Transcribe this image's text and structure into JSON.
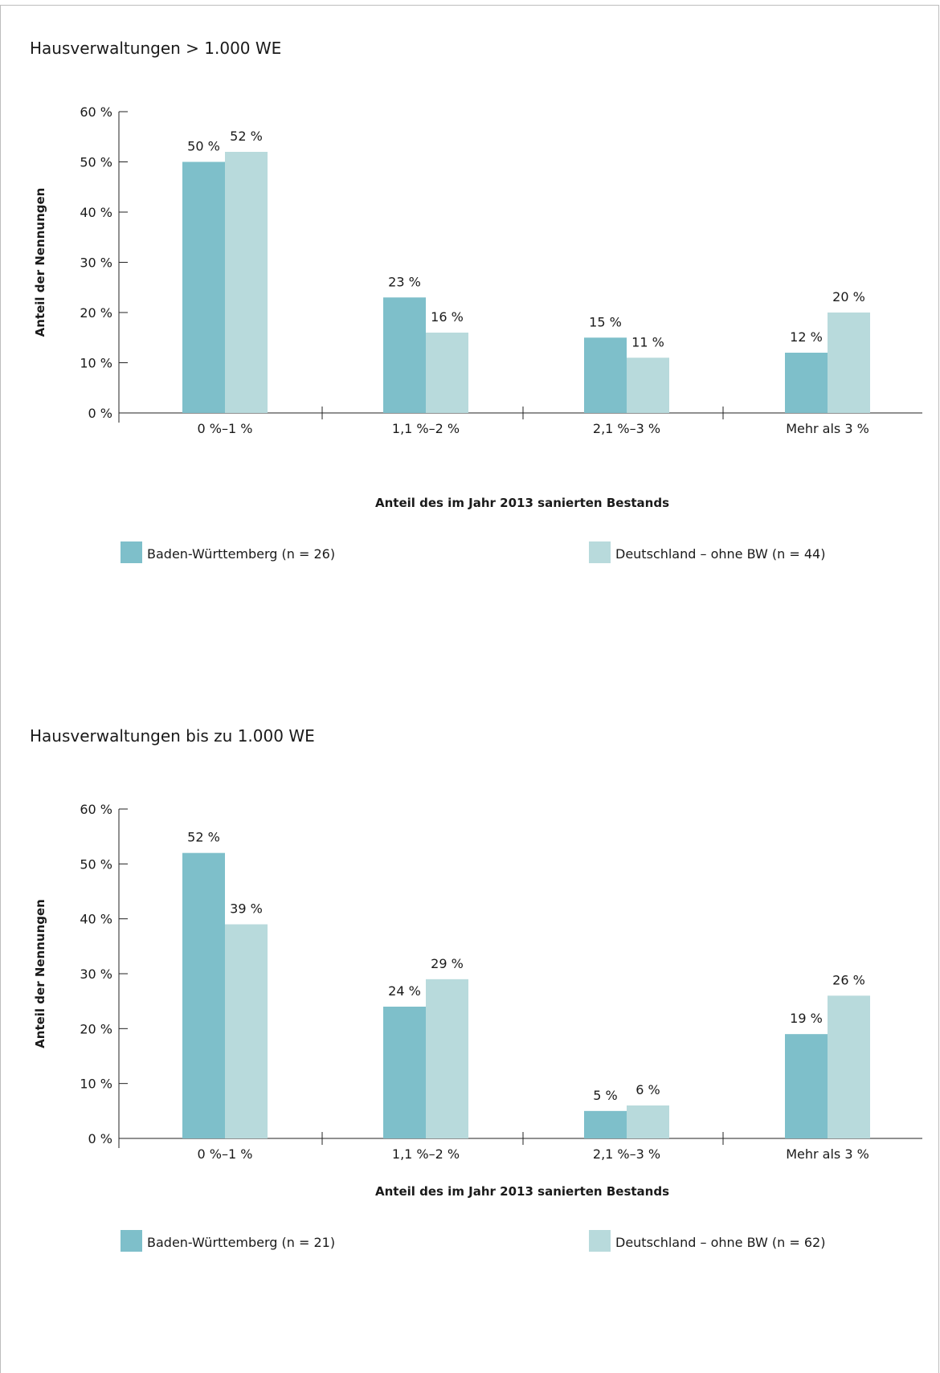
{
  "colors": {
    "bw": "#7ebfca",
    "de": "#b8dadc",
    "axis": "#222222"
  },
  "chart_data": [
    {
      "type": "bar",
      "title": "Hausverwaltungen > 1.000 WE",
      "xlabel": "Anteil des im Jahr 2013 sanierten Bestands",
      "ylabel": "Anteil der Nennungen",
      "ylim": [
        0,
        60
      ],
      "yticks": [
        0,
        10,
        20,
        30,
        40,
        50,
        60
      ],
      "ytick_labels": [
        "0 %",
        "10 %",
        "20 %",
        "30 %",
        "40 %",
        "50 %",
        "60 %"
      ],
      "categories": [
        "0 %–1 %",
        "1,1 %–2 %",
        "2,1 %–3 %",
        "Mehr als 3 %"
      ],
      "series": [
        {
          "name": "Baden-Württemberg (n = 26)",
          "values": [
            50,
            23,
            15,
            12
          ],
          "labels": [
            "50 %",
            "23 %",
            "15 %",
            "12 %"
          ]
        },
        {
          "name": "Deutschland – ohne BW (n = 44)",
          "values": [
            52,
            16,
            11,
            20
          ],
          "labels": [
            "52 %",
            "16 %",
            "11 %",
            "20 %"
          ]
        }
      ],
      "grid": false,
      "legend": "bottom"
    },
    {
      "type": "bar",
      "title": "Hausverwaltungen bis zu 1.000 WE",
      "xlabel": "Anteil des im Jahr 2013 sanierten Bestands",
      "ylabel": "Anteil der Nennungen",
      "ylim": [
        0,
        60
      ],
      "yticks": [
        0,
        10,
        20,
        30,
        40,
        50,
        60
      ],
      "ytick_labels": [
        "0 %",
        "10 %",
        "20 %",
        "30 %",
        "40 %",
        "50 %",
        "60 %"
      ],
      "categories": [
        "0 %–1 %",
        "1,1 %–2 %",
        "2,1 %–3 %",
        "Mehr als 3 %"
      ],
      "series": [
        {
          "name": "Baden-Württemberg (n = 21)",
          "values": [
            52,
            24,
            5,
            19
          ],
          "labels": [
            "52 %",
            "24 %",
            "5 %",
            "19 %"
          ]
        },
        {
          "name": "Deutschland – ohne BW (n = 62)",
          "values": [
            39,
            29,
            6,
            26
          ],
          "labels": [
            "39 %",
            "29 %",
            "6 %",
            "26 %"
          ]
        }
      ],
      "grid": false,
      "legend": "bottom"
    }
  ]
}
